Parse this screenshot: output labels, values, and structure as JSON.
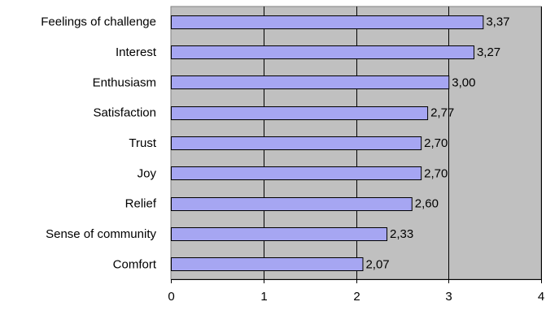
{
  "chart_data": {
    "type": "bar",
    "orientation": "horizontal",
    "title": "",
    "xlabel": "",
    "ylabel": "",
    "categories": [
      "Feelings of challenge",
      "Interest",
      "Enthusiasm",
      "Satisfaction",
      "Trust",
      "Joy",
      "Relief",
      "Sense of community",
      "Comfort"
    ],
    "values": [
      3.37,
      3.27,
      3.0,
      2.77,
      2.7,
      2.7,
      2.6,
      2.33,
      2.07
    ],
    "value_labels": [
      "3,37",
      "3,27",
      "3,00",
      "2,77",
      "2,70",
      "2,70",
      "2,60",
      "2,33",
      "2,07"
    ],
    "xlim": [
      0,
      4
    ],
    "xticks": [
      0,
      1,
      2,
      3,
      4
    ],
    "xtick_labels": [
      "0",
      "1",
      "2",
      "3",
      "4"
    ],
    "grid": "vertical",
    "legend": "none",
    "colors": {
      "bar_fill": "#a6a6f2",
      "bar_stroke": "#000000",
      "plot_background": "#c0c0c0",
      "grid": "#000000"
    }
  }
}
